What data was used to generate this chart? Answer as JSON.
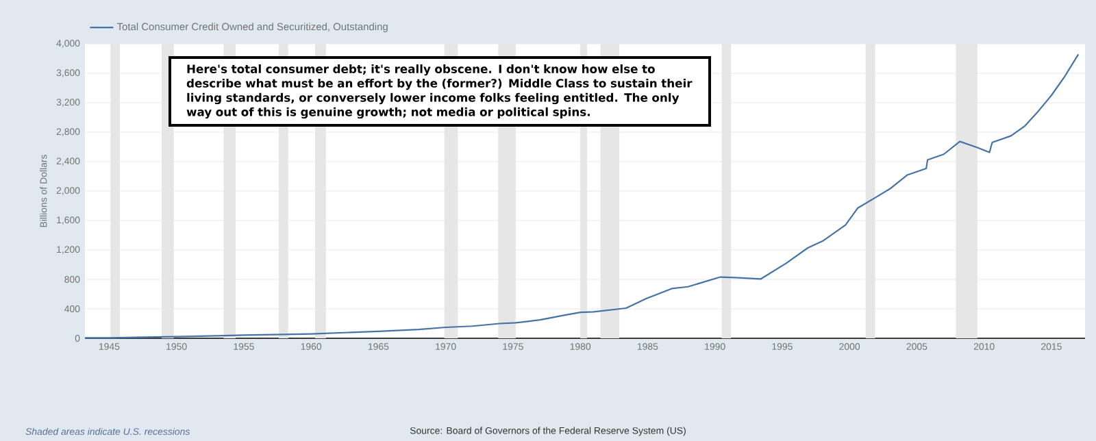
{
  "chart_data": {
    "type": "line",
    "ylabel": "Billions of Dollars",
    "xlim": [
      1943.2,
      2017.5
    ],
    "ylim": [
      0,
      4000
    ],
    "xticks": [
      1945,
      1950,
      1955,
      1960,
      1965,
      1970,
      1975,
      1980,
      1985,
      1990,
      1995,
      2000,
      2005,
      2010,
      2015
    ],
    "yticks": [
      0,
      400,
      800,
      {
        "value": 1200,
        "label": "1,200"
      },
      {
        "value": 1600,
        "label": "1,600"
      },
      {
        "value": 2000,
        "label": "2,000"
      },
      {
        "value": 2400,
        "label": "2,400"
      },
      {
        "value": 2800,
        "label": "2,800"
      },
      {
        "value": 3200,
        "label": "3,200"
      },
      {
        "value": 3600,
        "label": "3,600"
      },
      {
        "value": 4000,
        "label": "4,000"
      }
    ],
    "grid": "y",
    "legend": "top left",
    "series": [
      {
        "name": "Total Consumer Credit Owned and Securitized, Outstanding",
        "color": "#4572a7",
        "x": [
          1943.2,
          1945,
          1947,
          1950,
          1953,
          1955,
          1958,
          1960,
          1963,
          1965,
          1968,
          1970,
          1972,
          1974,
          1975.2,
          1977,
          1979,
          1980,
          1981,
          1983.4,
          1984.9,
          1986.8,
          1988,
          1990.4,
          1991.5,
          1993.4,
          1995.3,
          1996.9,
          1998,
          1999.7,
          2000.6,
          2002,
          2003,
          2004.3,
          2005.7,
          2005.8,
          2007,
          2008.2,
          2009.5,
          2010.4,
          2010.6,
          2012,
          2013,
          2014,
          2015,
          2016,
          2017
        ],
        "values": [
          6,
          6,
          12,
          22,
          33,
          43,
          52,
          60,
          80,
          95,
          120,
          149,
          165,
          200,
          210,
          250,
          320,
          353,
          360,
          409,
          540,
          675,
          700,
          832,
          825,
          805,
          1020,
          1228,
          1320,
          1539,
          1767,
          1920,
          2030,
          2219,
          2307,
          2424,
          2500,
          2673,
          2590,
          2525,
          2660,
          2750,
          2880,
          3080,
          3300,
          3560,
          3857
        ]
      }
    ],
    "bands": [
      {
        "axis": "x",
        "from": 1945.1,
        "to": 1945.8,
        "color": "#e6e6e6"
      },
      {
        "axis": "x",
        "from": 1948.9,
        "to": 1949.8,
        "color": "#e6e6e6"
      },
      {
        "axis": "x",
        "from": 1953.5,
        "to": 1954.4,
        "color": "#e6e6e6"
      },
      {
        "axis": "x",
        "from": 1957.6,
        "to": 1958.3,
        "color": "#e6e6e6"
      },
      {
        "axis": "x",
        "from": 1960.3,
        "to": 1961.1,
        "color": "#e6e6e6"
      },
      {
        "axis": "x",
        "from": 1969.9,
        "to": 1970.9,
        "color": "#e6e6e6"
      },
      {
        "axis": "x",
        "from": 1973.9,
        "to": 1975.2,
        "color": "#e6e6e6"
      },
      {
        "axis": "x",
        "from": 1980.0,
        "to": 1980.5,
        "color": "#e6e6e6"
      },
      {
        "axis": "x",
        "from": 1981.5,
        "to": 1982.9,
        "color": "#e6e6e6"
      },
      {
        "axis": "x",
        "from": 1990.5,
        "to": 1991.2,
        "color": "#e6e6e6"
      },
      {
        "axis": "x",
        "from": 2001.2,
        "to": 2001.9,
        "color": "#e6e6e6"
      },
      {
        "axis": "x",
        "from": 2007.9,
        "to": 2009.5,
        "color": "#e6e6e6"
      }
    ],
    "annotations": [
      "Here's total consumer debt; it's really obscene. I don't know how else to describe what must be an effort by the (former?) Middle Class to sustain their living standards, or conversely lower income folks feeling entitled. The only way out of this is genuine growth; not media or political spins.",
      "Shaded areas indicate U.S. recessions",
      "Source: Board of Governors of the Federal Reserve System (US)"
    ]
  }
}
